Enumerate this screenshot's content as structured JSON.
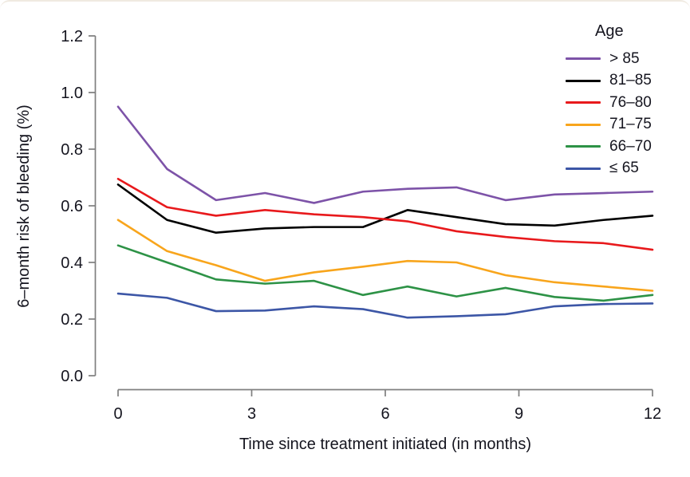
{
  "figure": {
    "xlabel": "Time since treatment initiated (in months)",
    "ylabel": "6–month risk of bleeding (%)",
    "legend_title": "Age"
  },
  "colors": {
    "axis": "#7f7f7f",
    "text": "#15151f",
    "background": "#ffffff"
  },
  "chart_data": {
    "type": "line",
    "title": "",
    "xlabel": "Time since treatment initiated (in months)",
    "ylabel": "6–month risk of bleeding (%)",
    "legend_title": "Age",
    "legend_position": "top-right",
    "grid": false,
    "xlim": [
      0,
      12
    ],
    "ylim": [
      0.0,
      1.2
    ],
    "x_ticks": [
      0,
      3,
      6,
      9,
      12
    ],
    "y_tick_labels": [
      "0.0",
      "0.2",
      "0.4",
      "0.6",
      "0.8",
      "1.0",
      "1.2"
    ],
    "x": [
      0,
      1.1,
      2.2,
      3.3,
      4.4,
      5.5,
      6.5,
      7.6,
      8.7,
      9.8,
      10.9,
      12
    ],
    "series": [
      {
        "name": "> 85",
        "slug": "over-85",
        "color": "#7d53a8",
        "values": [
          0.95,
          0.73,
          0.62,
          0.645,
          0.61,
          0.65,
          0.66,
          0.665,
          0.62,
          0.64,
          0.645,
          0.65
        ]
      },
      {
        "name": "81–85",
        "slug": "81-85",
        "color": "#000000",
        "values": [
          0.675,
          0.55,
          0.505,
          0.52,
          0.525,
          0.525,
          0.585,
          0.56,
          0.535,
          0.53,
          0.55,
          0.565
        ]
      },
      {
        "name": "76–80",
        "slug": "76-80",
        "color": "#e8191c",
        "values": [
          0.695,
          0.595,
          0.565,
          0.585,
          0.57,
          0.56,
          0.545,
          0.51,
          0.49,
          0.475,
          0.468,
          0.445
        ]
      },
      {
        "name": "71–75",
        "slug": "71-75",
        "color": "#f8a51c",
        "values": [
          0.55,
          0.44,
          0.39,
          0.335,
          0.365,
          0.385,
          0.405,
          0.4,
          0.355,
          0.33,
          0.315,
          0.3
        ]
      },
      {
        "name": "66–70",
        "slug": "66-70",
        "color": "#2d9246",
        "values": [
          0.46,
          0.4,
          0.34,
          0.325,
          0.335,
          0.285,
          0.315,
          0.28,
          0.31,
          0.278,
          0.265,
          0.285
        ]
      },
      {
        "name": "≤ 65",
        "slug": "le-65",
        "color": "#3c56a6",
        "values": [
          0.29,
          0.275,
          0.228,
          0.23,
          0.245,
          0.235,
          0.205,
          0.21,
          0.217,
          0.245,
          0.253,
          0.255
        ]
      }
    ]
  }
}
